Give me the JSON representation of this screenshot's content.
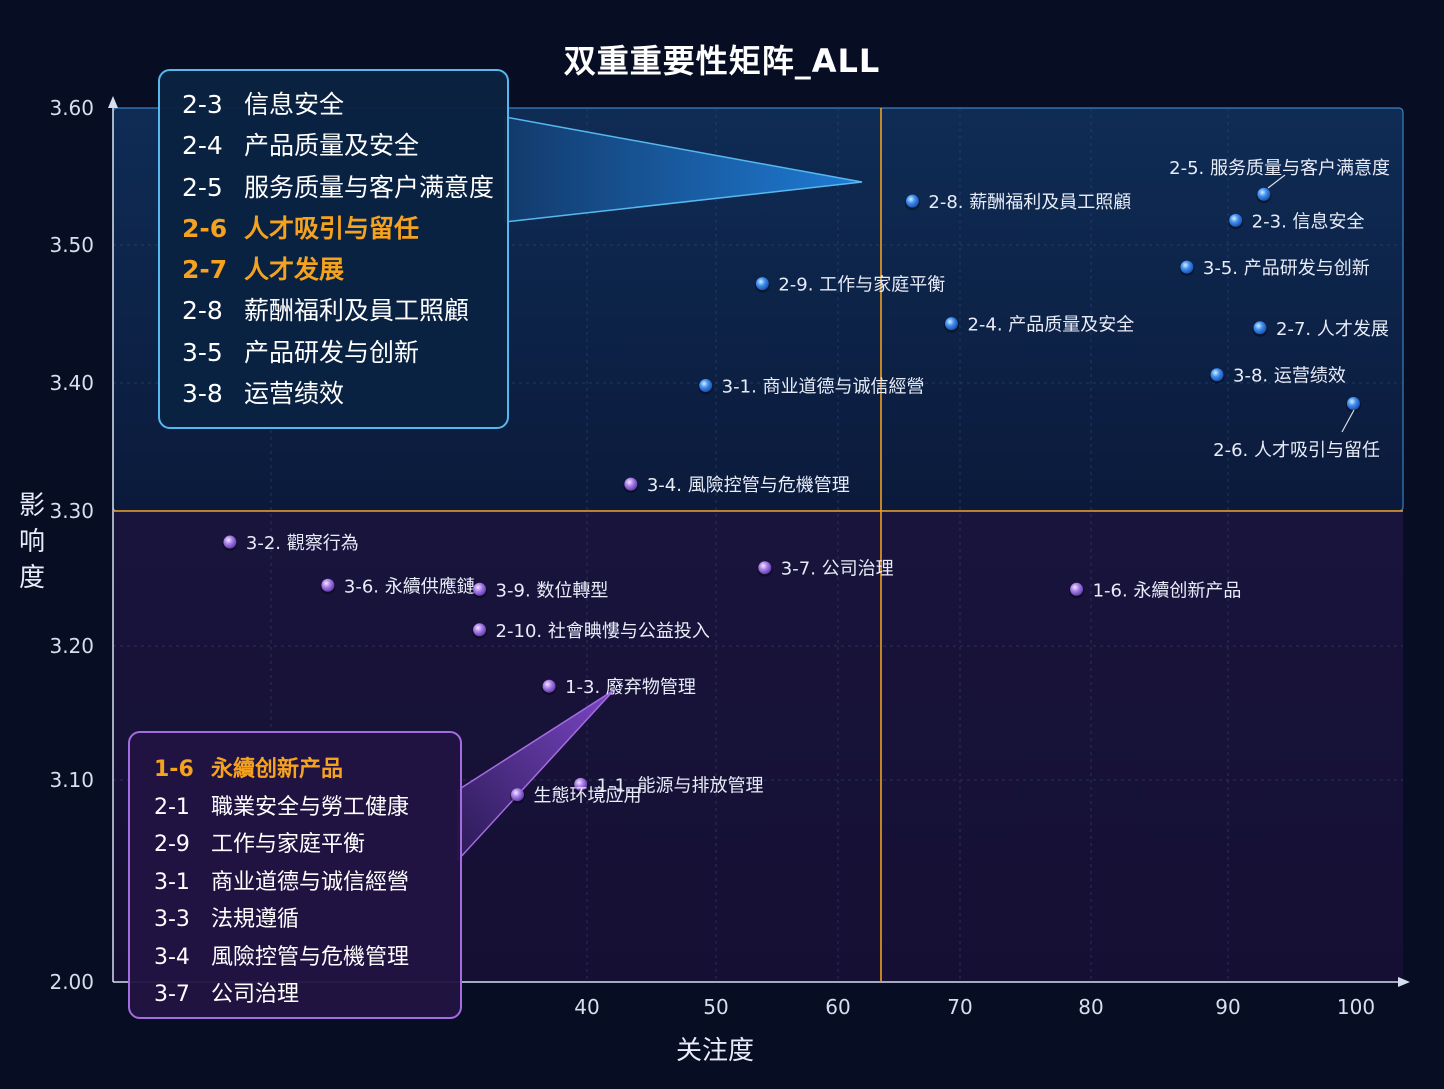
{
  "chart_data": {
    "type": "scatter",
    "title": "双重重要性矩阵_ALL",
    "xlabel": "关注度",
    "ylabel": "影响度",
    "x_ticks": [
      "40",
      "50",
      "60",
      "70",
      "80",
      "90",
      "100"
    ],
    "y_ticks": [
      "2.00",
      "3.10",
      "3.20",
      "3.30",
      "3.40",
      "3.50",
      "3.60"
    ],
    "threshold_x": 63.5,
    "threshold_y": 3.3,
    "colors": {
      "high": "#3d8ff0",
      "low": "#a87ee8",
      "threshold": "#f0a021",
      "highlight": "#f5a21f"
    },
    "points": [
      {
        "label": "2-5. 服务质量与客户满意度",
        "x": 92.8,
        "y": 3.537,
        "group": "high"
      },
      {
        "label": "2-8. 薪酬福利及員工照顧",
        "x": 66.1,
        "y": 3.532,
        "group": "high"
      },
      {
        "label": "2-3. 信息安全",
        "x": 90.6,
        "y": 3.518,
        "group": "high"
      },
      {
        "label": "3-5. 产品研发与创新",
        "x": 87.0,
        "y": 3.484,
        "group": "high"
      },
      {
        "label": "2-9. 工作与家庭平衡",
        "x": 53.8,
        "y": 3.472,
        "group": "high"
      },
      {
        "label": "2-4. 产品质量及安全",
        "x": 69.3,
        "y": 3.443,
        "group": "high"
      },
      {
        "label": "2-7. 人才发展",
        "x": 92.5,
        "y": 3.44,
        "group": "high"
      },
      {
        "label": "3-8. 运营绩效",
        "x": 89.2,
        "y": 3.406,
        "group": "high"
      },
      {
        "label": "3-1. 商业道德与诚信經營",
        "x": 49.2,
        "y": 3.398,
        "group": "high"
      },
      {
        "label": "2-6. 人才吸引与留任",
        "x": 99.8,
        "y": 3.384,
        "group": "high"
      },
      {
        "label": "3-4. 風險控管与危機管理",
        "x": 43.4,
        "y": 3.321,
        "group": "low"
      },
      {
        "label": "3-2. 觀察行為",
        "x": 27.4,
        "y": 3.277,
        "group": "low"
      },
      {
        "label": "3-7. 公司治理",
        "x": 54.0,
        "y": 3.258,
        "group": "low"
      },
      {
        "label": "3-6. 永續供應鏈",
        "x": 31.8,
        "y": 3.245,
        "group": "low"
      },
      {
        "label": "3-9. 数位轉型",
        "x": 36.6,
        "y": 3.242,
        "group": "low"
      },
      {
        "label": "1-6. 永續创新产品",
        "x": 78.9,
        "y": 3.242,
        "group": "low"
      },
      {
        "label": "2-10. 社會睓慺与公益投入",
        "x": 36.6,
        "y": 3.212,
        "group": "low"
      },
      {
        "label": "1-3. 廢弃物管理",
        "x": 38.8,
        "y": 3.17,
        "group": "low"
      },
      {
        "label": "1-1. 能源与排放管理",
        "x": 39.8,
        "y": 3.076,
        "group": "low"
      },
      {
        "label": "生態环境应用",
        "x": 37.8,
        "y": 3.02,
        "group": "low"
      }
    ]
  },
  "callout_top": {
    "items": [
      {
        "code": "2-3",
        "label": "信息安全",
        "highlight": false
      },
      {
        "code": "2-4",
        "label": "产品质量及安全",
        "highlight": false
      },
      {
        "code": "2-5",
        "label": "服务质量与客户满意度",
        "highlight": false
      },
      {
        "code": "2-6",
        "label": "人才吸引与留任",
        "highlight": true
      },
      {
        "code": "2-7",
        "label": "人才发展",
        "highlight": true
      },
      {
        "code": "2-8",
        "label": "薪酬福利及員工照顧",
        "highlight": false
      },
      {
        "code": "3-5",
        "label": "产品研发与创新",
        "highlight": false
      },
      {
        "code": "3-8",
        "label": "运营绩效",
        "highlight": false
      }
    ]
  },
  "callout_bottom": {
    "items": [
      {
        "code": "1-6",
        "label": "永續创新产品",
        "highlight": true
      },
      {
        "code": "2-1",
        "label": "職業安全与勞工健康",
        "highlight": false
      },
      {
        "code": "2-9",
        "label": "工作与家庭平衡",
        "highlight": false
      },
      {
        "code": "3-1",
        "label": "商业道德与诚信經營",
        "highlight": false
      },
      {
        "code": "3-3",
        "label": "法規遵循",
        "highlight": false
      },
      {
        "code": "3-4",
        "label": "風險控管与危機管理",
        "highlight": false
      },
      {
        "code": "3-7",
        "label": "公司治理",
        "highlight": false
      }
    ]
  }
}
